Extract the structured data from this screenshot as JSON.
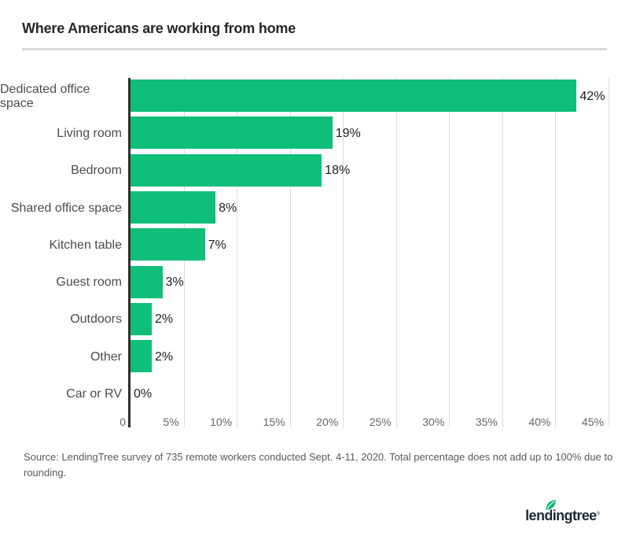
{
  "header": {
    "title": "Where Americans are working from home"
  },
  "chart_data": {
    "type": "bar",
    "orientation": "horizontal",
    "title": "Where Americans are working from home",
    "xlabel": "",
    "ylabel": "",
    "xlim": [
      0,
      45
    ],
    "grid": "vertical",
    "categories": [
      "Dedicated office space",
      "Living room",
      "Bedroom",
      "Shared office space",
      "Kitchen table",
      "Guest room",
      "Outdoors",
      "Other",
      "Car or RV"
    ],
    "values": [
      42,
      19,
      18,
      8,
      7,
      3,
      2,
      2,
      0
    ],
    "value_labels": [
      "42%",
      "19%",
      "18%",
      "8%",
      "7%",
      "3%",
      "2%",
      "2%",
      "0%"
    ],
    "ticks": [
      {
        "value": 0,
        "label": "0"
      },
      {
        "value": 5,
        "label": "5%"
      },
      {
        "value": 10,
        "label": "10%"
      },
      {
        "value": 15,
        "label": "15%"
      },
      {
        "value": 20,
        "label": "20%"
      },
      {
        "value": 25,
        "label": "25%"
      },
      {
        "value": 30,
        "label": "30%"
      },
      {
        "value": 35,
        "label": "35%"
      },
      {
        "value": 40,
        "label": "40%"
      },
      {
        "value": 45,
        "label": "45%"
      }
    ],
    "colors": {
      "bar": "#0fbe78",
      "axis": "#2f2f2f",
      "gridline": "#dcdcdc"
    }
  },
  "source": {
    "text": "Source: LendingTree survey of 735 remote workers conducted Sept. 4-11, 2020. Total percentage does not add up to 100% due to rounding."
  },
  "footer": {
    "logo_text": "lendingtree",
    "logo_mark": "®",
    "logo_color": "#1b2a38",
    "leaf_color": "#00b871"
  }
}
